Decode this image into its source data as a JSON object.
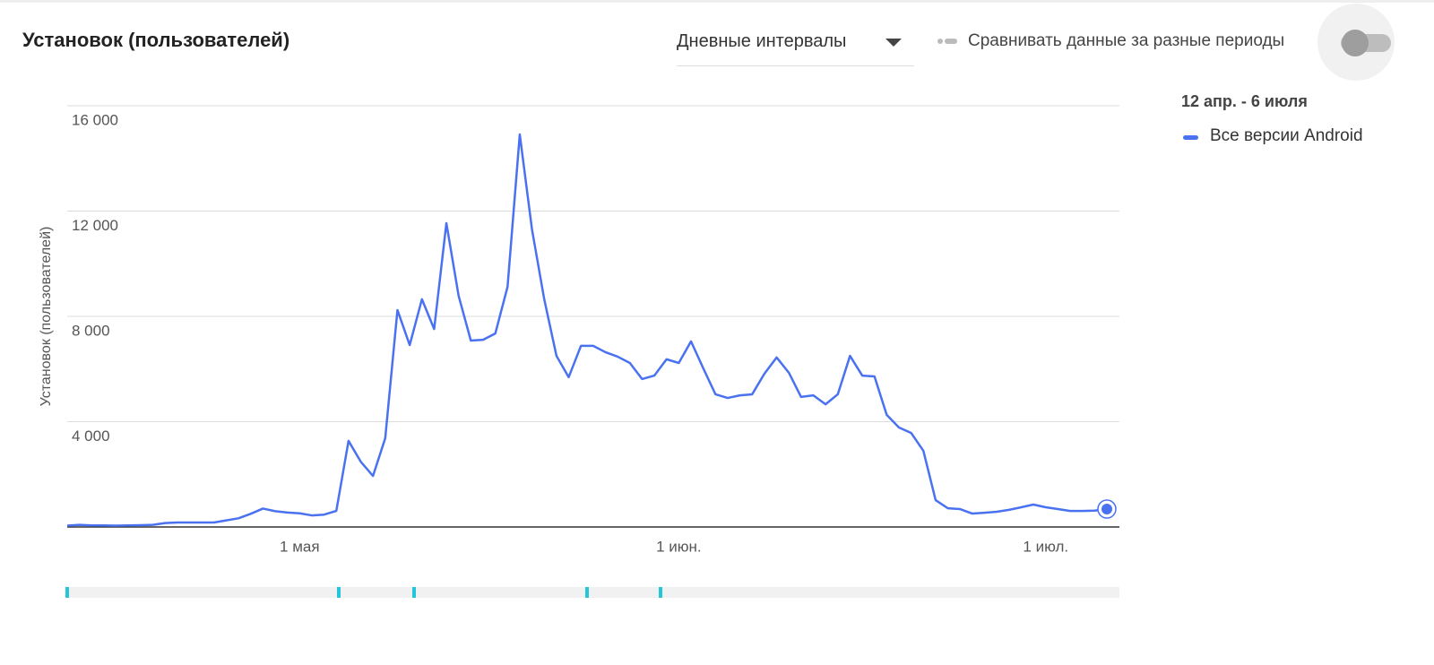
{
  "header": {
    "title": "Установок (пользователей)",
    "interval_dropdown": "Дневные интервалы",
    "compare_toggle": "Сравнивать данные за разные периоды"
  },
  "legend": {
    "period": "12 апр. - 6 июля"
  },
  "chart_data": {
    "type": "line",
    "y_label": "Установок (пользователей)",
    "categories": [
      null,
      null,
      null,
      null,
      null,
      null,
      null,
      null,
      null,
      null,
      null,
      null,
      null,
      null,
      null,
      null,
      null,
      null,
      null,
      "1 мая",
      null,
      null,
      null,
      null,
      null,
      null,
      null,
      null,
      null,
      null,
      null,
      null,
      null,
      null,
      null,
      null,
      null,
      null,
      null,
      null,
      null,
      null,
      null,
      null,
      null,
      null,
      null,
      null,
      null,
      null,
      "1 июн.",
      null,
      null,
      null,
      null,
      null,
      null,
      null,
      null,
      null,
      null,
      null,
      null,
      null,
      null,
      null,
      null,
      null,
      null,
      null,
      null,
      null,
      null,
      null,
      null,
      null,
      null,
      null,
      null,
      null,
      "1 июл.",
      null,
      null,
      null,
      null,
      null
    ],
    "series": [
      {
        "name": "Все версии Android",
        "color": "#4a72f0",
        "values": [
          50,
          80,
          60,
          60,
          50,
          60,
          70,
          80,
          150,
          170,
          170,
          170,
          170,
          250,
          330,
          500,
          700,
          600,
          550,
          520,
          440,
          470,
          610,
          3270,
          2480,
          1940,
          3370,
          8240,
          6910,
          8650,
          7520,
          11540,
          8780,
          7080,
          7110,
          7350,
          9120,
          14910,
          11300,
          8650,
          6500,
          5690,
          6880,
          6880,
          6640,
          6470,
          6230,
          5620,
          5750,
          6370,
          6230,
          7050,
          6030,
          5040,
          4900,
          5000,
          5040,
          5820,
          6440,
          5860,
          4940,
          5000,
          4660,
          5040,
          6500,
          5750,
          5720,
          4260,
          3780,
          3570,
          2890,
          1020,
          710,
          680,
          510,
          540,
          580,
          650,
          750,
          850,
          750,
          680,
          610,
          610,
          620,
          680
        ]
      }
    ],
    "ylim": [
      0,
      16000
    ],
    "yticks": [
      {
        "value": 4000,
        "label": "4 000"
      },
      {
        "value": 8000,
        "label": "8 000"
      },
      {
        "value": 12000,
        "label": "12 000"
      },
      {
        "value": 16000,
        "label": "16 000"
      }
    ],
    "grid": true
  }
}
